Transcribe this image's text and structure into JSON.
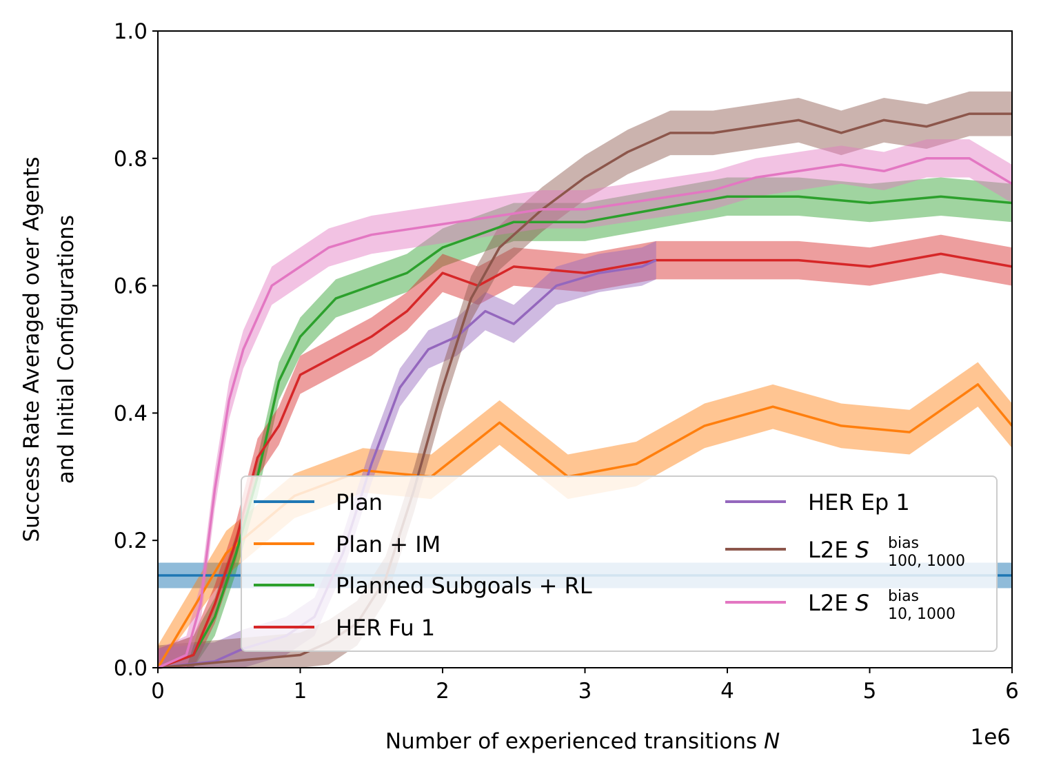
{
  "chart_data": {
    "type": "line",
    "xlabel": "Number of experienced transitions",
    "xlabel_var": "N",
    "ylabel_line1": "Success Rate Averaged over Agents",
    "ylabel_line2": "and Initial Configurations",
    "x_offset_text": "1e6",
    "xlim": [
      0,
      6000000
    ],
    "ylim": [
      0,
      1
    ],
    "x_ticks": [
      0,
      1,
      2,
      3,
      4,
      5,
      6
    ],
    "y_ticks": [
      "0.0",
      "0.2",
      "0.4",
      "0.6",
      "0.8",
      "1.0"
    ],
    "grid": false,
    "legend_position": "lower-right",
    "series": [
      {
        "name": "Plan",
        "color": "#1f77b4",
        "constant": 0.145,
        "band": [
          0.125,
          0.165
        ]
      },
      {
        "name": "Plan + IM",
        "color": "#ff7f0e",
        "band_width": 0.035,
        "x": [
          0,
          480000,
          960000,
          1440000,
          1920000,
          2400000,
          2880000,
          3360000,
          3840000,
          4320000,
          4800000,
          5280000,
          5760000,
          6000000
        ],
        "y": [
          0.0,
          0.18,
          0.27,
          0.31,
          0.3,
          0.385,
          0.3,
          0.32,
          0.38,
          0.41,
          0.38,
          0.37,
          0.445,
          0.38
        ]
      },
      {
        "name": "Planned Subgoals + RL",
        "color": "#2ca02c",
        "band_width": 0.03,
        "x": [
          0,
          250000,
          400000,
          550000,
          700000,
          850000,
          1000000,
          1250000,
          1500000,
          1750000,
          2000000,
          2250000,
          2500000,
          3000000,
          3500000,
          4000000,
          4500000,
          5000000,
          5500000,
          6000000
        ],
        "y": [
          0.0,
          0.02,
          0.08,
          0.18,
          0.3,
          0.45,
          0.52,
          0.58,
          0.6,
          0.62,
          0.66,
          0.68,
          0.7,
          0.7,
          0.72,
          0.74,
          0.74,
          0.73,
          0.74,
          0.73
        ]
      },
      {
        "name": "HER Fu 1",
        "color": "#d62728",
        "band_width": 0.03,
        "x": [
          0,
          250000,
          400000,
          550000,
          700000,
          850000,
          1000000,
          1250000,
          1500000,
          1750000,
          2000000,
          2250000,
          2500000,
          3000000,
          3500000,
          4000000,
          4500000,
          5000000,
          5500000,
          6000000
        ],
        "y": [
          0.0,
          0.02,
          0.1,
          0.2,
          0.33,
          0.38,
          0.46,
          0.49,
          0.52,
          0.56,
          0.62,
          0.6,
          0.63,
          0.62,
          0.64,
          0.64,
          0.64,
          0.63,
          0.65,
          0.63
        ]
      },
      {
        "name": "HER Ep 1",
        "color": "#9467bd",
        "band_width": 0.03,
        "x": [
          0,
          400000,
          600000,
          900000,
          1100000,
          1300000,
          1500000,
          1700000,
          1900000,
          2100000,
          2300000,
          2500000,
          2800000,
          3100000,
          3400000,
          3500000
        ],
        "y": [
          0.0,
          0.01,
          0.03,
          0.05,
          0.08,
          0.18,
          0.32,
          0.44,
          0.5,
          0.52,
          0.56,
          0.54,
          0.6,
          0.62,
          0.63,
          0.64
        ]
      },
      {
        "name": "L2E",
        "label_math": "S",
        "label_sup": "bias",
        "label_sub": "100, 1000",
        "color": "#8c564b",
        "band_width": 0.035,
        "x": [
          0,
          500000,
          1000000,
          1200000,
          1400000,
          1600000,
          1800000,
          2000000,
          2200000,
          2400000,
          2700000,
          3000000,
          3300000,
          3600000,
          3900000,
          4200000,
          4500000,
          4800000,
          5100000,
          5400000,
          5700000,
          6000000
        ],
        "y": [
          0.0,
          0.01,
          0.02,
          0.04,
          0.07,
          0.14,
          0.28,
          0.44,
          0.58,
          0.66,
          0.72,
          0.77,
          0.81,
          0.84,
          0.84,
          0.85,
          0.86,
          0.84,
          0.86,
          0.85,
          0.87,
          0.87
        ]
      },
      {
        "name": "L2E",
        "label_math": "S",
        "label_sup": "bias",
        "label_sub": "10, 1000",
        "color": "#e377c2",
        "band_width": 0.03,
        "x": [
          0,
          200000,
          300000,
          400000,
          500000,
          600000,
          700000,
          800000,
          1000000,
          1200000,
          1500000,
          1800000,
          2100000,
          2400000,
          2700000,
          3000000,
          3300000,
          3600000,
          3900000,
          4200000,
          4500000,
          4800000,
          5100000,
          5400000,
          5700000,
          6000000
        ],
        "y": [
          0.0,
          0.02,
          0.1,
          0.28,
          0.42,
          0.5,
          0.55,
          0.6,
          0.63,
          0.66,
          0.68,
          0.69,
          0.7,
          0.71,
          0.72,
          0.72,
          0.73,
          0.74,
          0.75,
          0.77,
          0.78,
          0.79,
          0.78,
          0.8,
          0.8,
          0.76
        ]
      }
    ]
  }
}
